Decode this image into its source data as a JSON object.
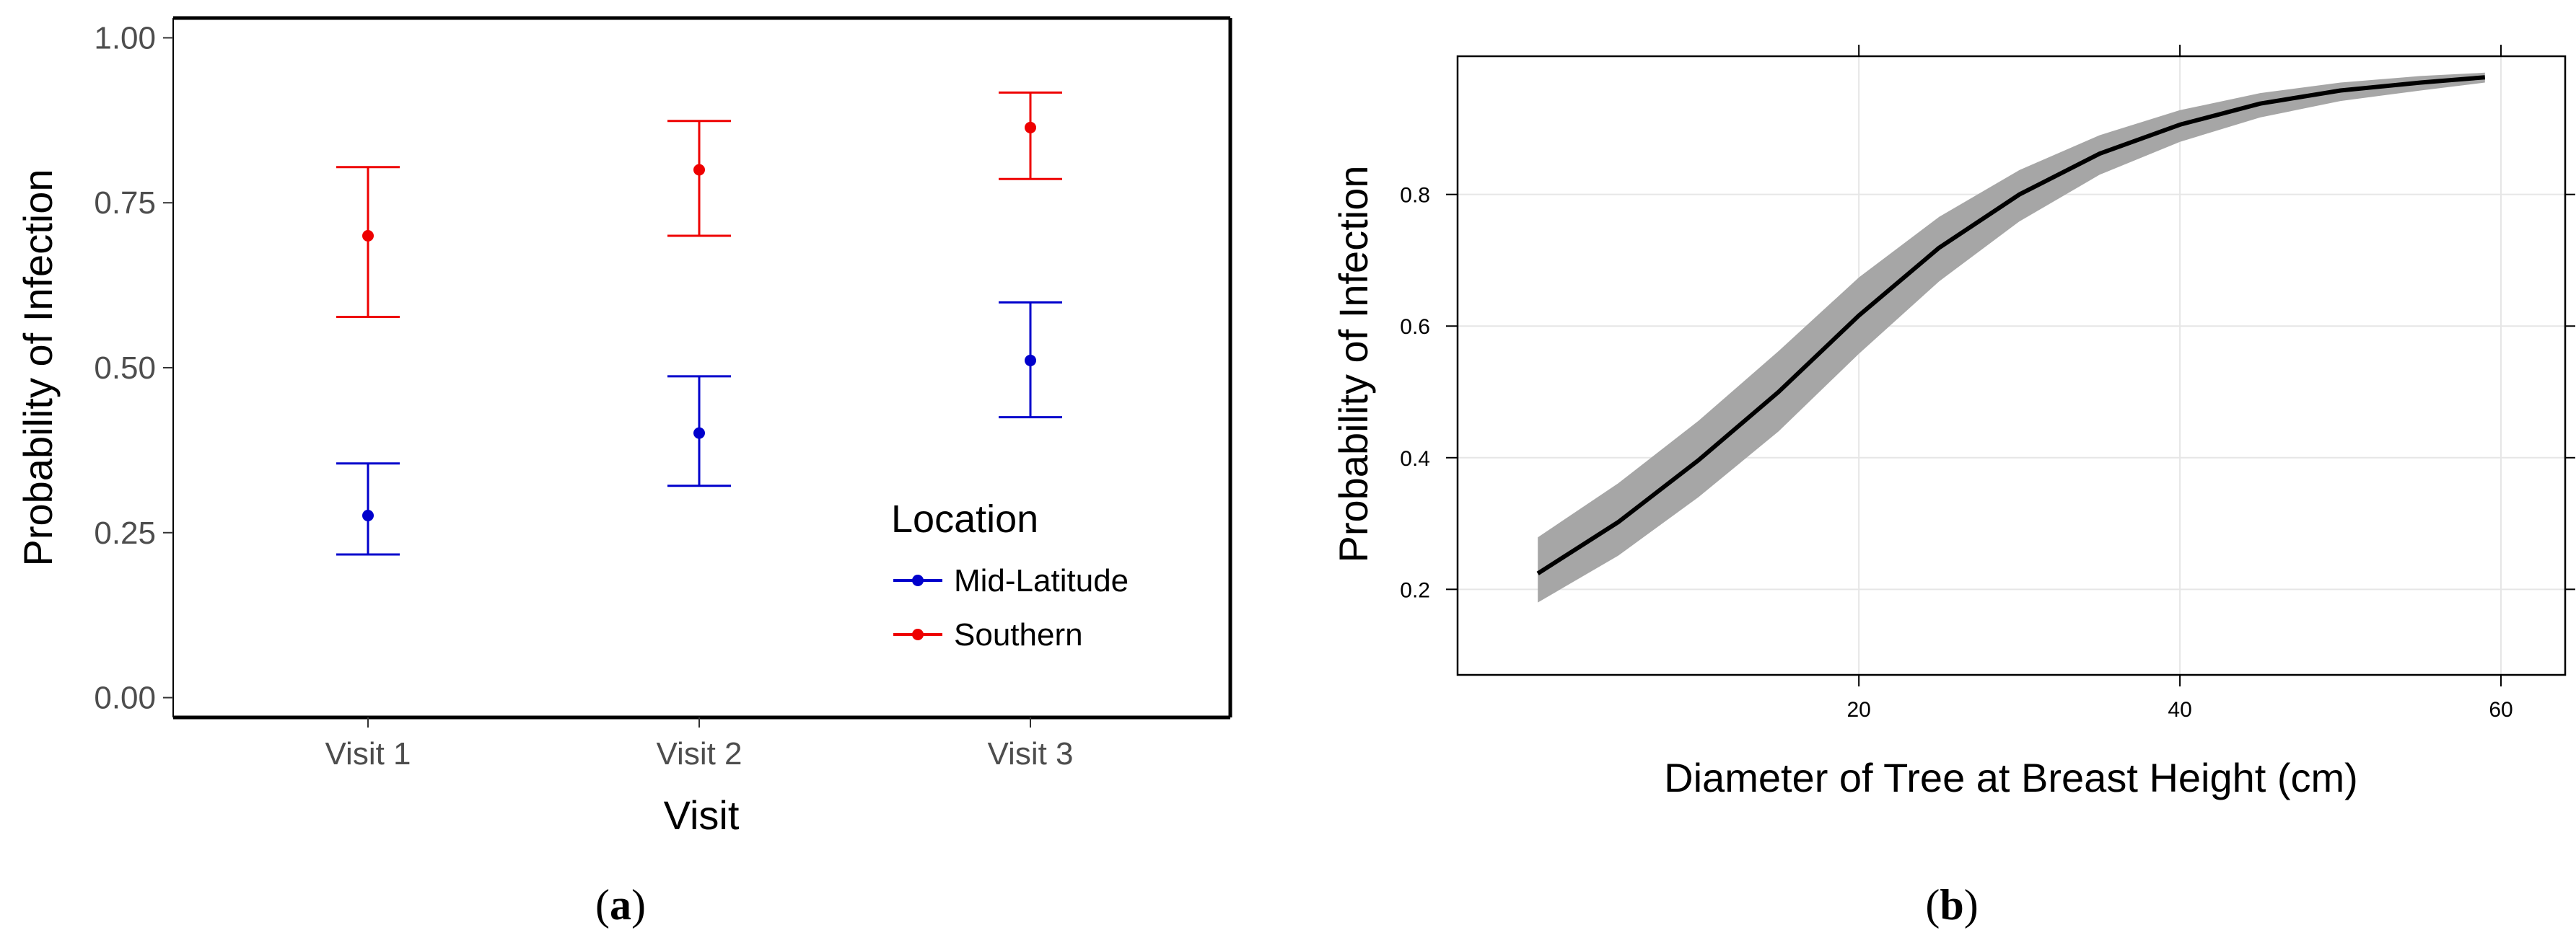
{
  "chart_data": [
    {
      "type": "scatter",
      "panel": "a",
      "caption_open": "(",
      "caption_letter": "a",
      "caption_close": ")",
      "xlabel": "Visit",
      "ylabel": "Probability of Infection",
      "categories": [
        "Visit 1",
        "Visit 2",
        "Visit 3"
      ],
      "ylim": [
        -0.03,
        1.03
      ],
      "yticks": [
        "0.00",
        "0.25",
        "0.50",
        "0.75",
        "1.00"
      ],
      "ytick_values": [
        0.0,
        0.25,
        0.5,
        0.75,
        1.0
      ],
      "grid": false,
      "legend": {
        "title": "Location",
        "placement": "right-bottom"
      },
      "series": [
        {
          "name": "Mid-Latitude",
          "color": "#0000cc",
          "values": [
            0.276,
            0.401,
            0.511
          ],
          "lower": [
            0.217,
            0.321,
            0.425
          ],
          "upper": [
            0.355,
            0.487,
            0.599
          ]
        },
        {
          "name": "Southern",
          "color": "#ee0000",
          "values": [
            0.7,
            0.8,
            0.864
          ],
          "lower": [
            0.577,
            0.7,
            0.786
          ],
          "upper": [
            0.804,
            0.874,
            0.917
          ]
        }
      ]
    },
    {
      "type": "line",
      "panel": "b",
      "caption_open": "(",
      "caption_letter": "b",
      "caption_close": ")",
      "xlabel": "Diameter of Tree at Breast Height (cm)",
      "ylabel": "Probability of Infection",
      "xlim": [
        -5,
        64
      ],
      "ylim": [
        0.07,
        1.01
      ],
      "xticks": [
        "20",
        "40",
        "60"
      ],
      "xtick_values": [
        20,
        40,
        60
      ],
      "yticks": [
        "0.2",
        "0.4",
        "0.6",
        "0.8"
      ],
      "ytick_values": [
        0.2,
        0.4,
        0.6,
        0.8
      ],
      "grid": true,
      "band_color": "#a6a6a6",
      "line_color": "#000000",
      "x": [
        0,
        5,
        10,
        15,
        20,
        25,
        30,
        35,
        40,
        45,
        50,
        55,
        59
      ],
      "y": [
        0.224,
        0.302,
        0.396,
        0.5,
        0.616,
        0.719,
        0.8,
        0.862,
        0.906,
        0.938,
        0.958,
        0.97,
        0.978
      ],
      "lower": [
        0.18,
        0.251,
        0.34,
        0.44,
        0.558,
        0.668,
        0.759,
        0.83,
        0.88,
        0.917,
        0.942,
        0.958,
        0.97
      ],
      "upper": [
        0.279,
        0.361,
        0.456,
        0.562,
        0.674,
        0.766,
        0.837,
        0.89,
        0.928,
        0.954,
        0.97,
        0.98,
        0.985
      ]
    }
  ]
}
